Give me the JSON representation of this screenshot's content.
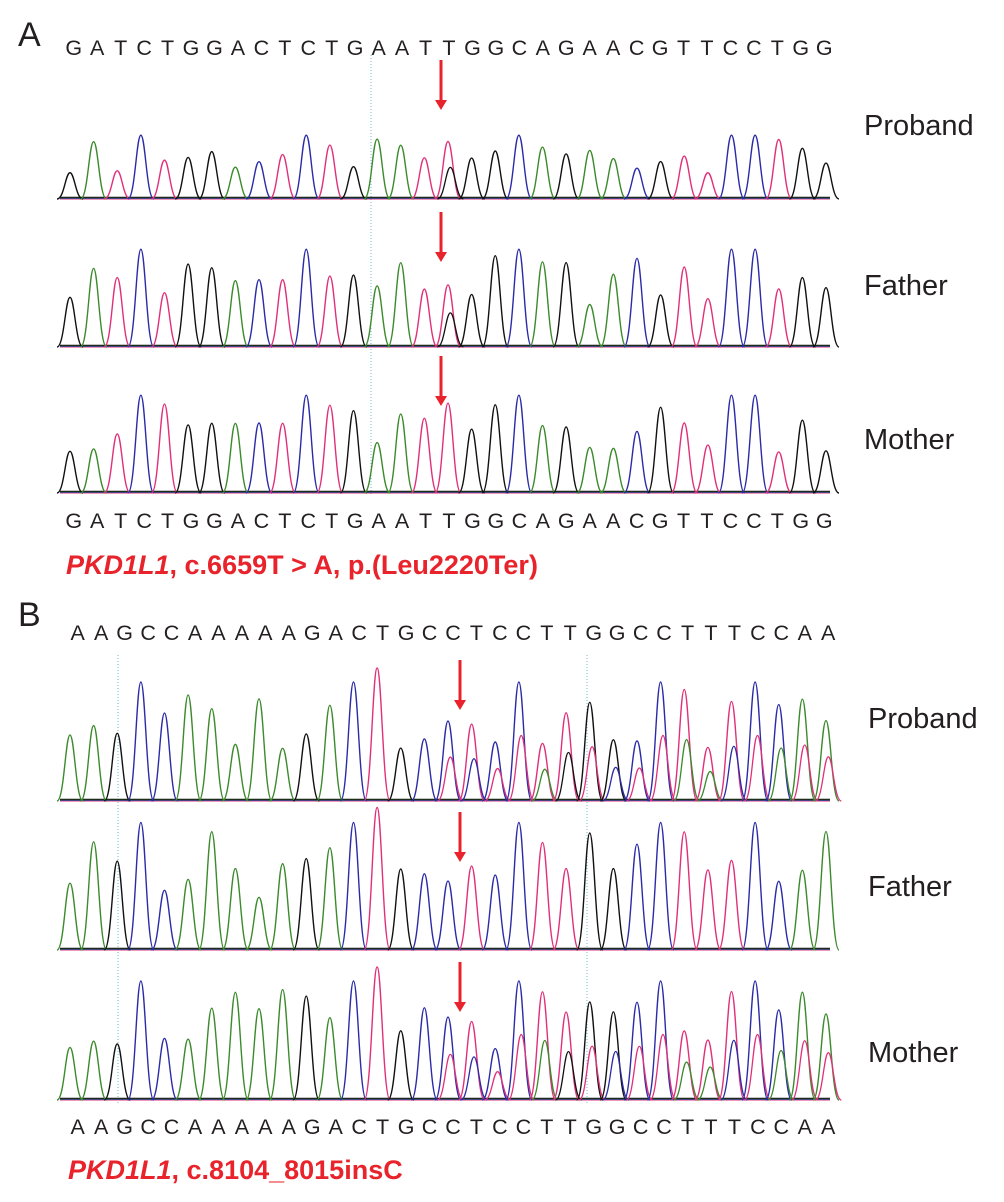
{
  "panels": [
    {
      "letter": "A",
      "sequence": "GATCTGGACTCTGAATTGGCAGAACGTTCCTGG",
      "samples": [
        "Proband",
        "Father",
        "Mother"
      ],
      "variant_gene": "PKD1L1",
      "variant_text": ", c.6659T > A, p.(Leu2220Ter)"
    },
    {
      "letter": "B",
      "sequence": "AAGCCAAAAAGACTGCCTCCTTGGCCTTTCCAA",
      "samples": [
        "Proband",
        "Father",
        "Mother"
      ],
      "variant_gene": "PKD1L1",
      "variant_text": ", c.8104_8015insC"
    }
  ],
  "colors": {
    "A": "#3b8a2c",
    "C": "#2b2ba8",
    "G": "#111111",
    "T": "#e0307a",
    "arrow": "#e8232b",
    "guide": "#4aa6c8"
  }
}
